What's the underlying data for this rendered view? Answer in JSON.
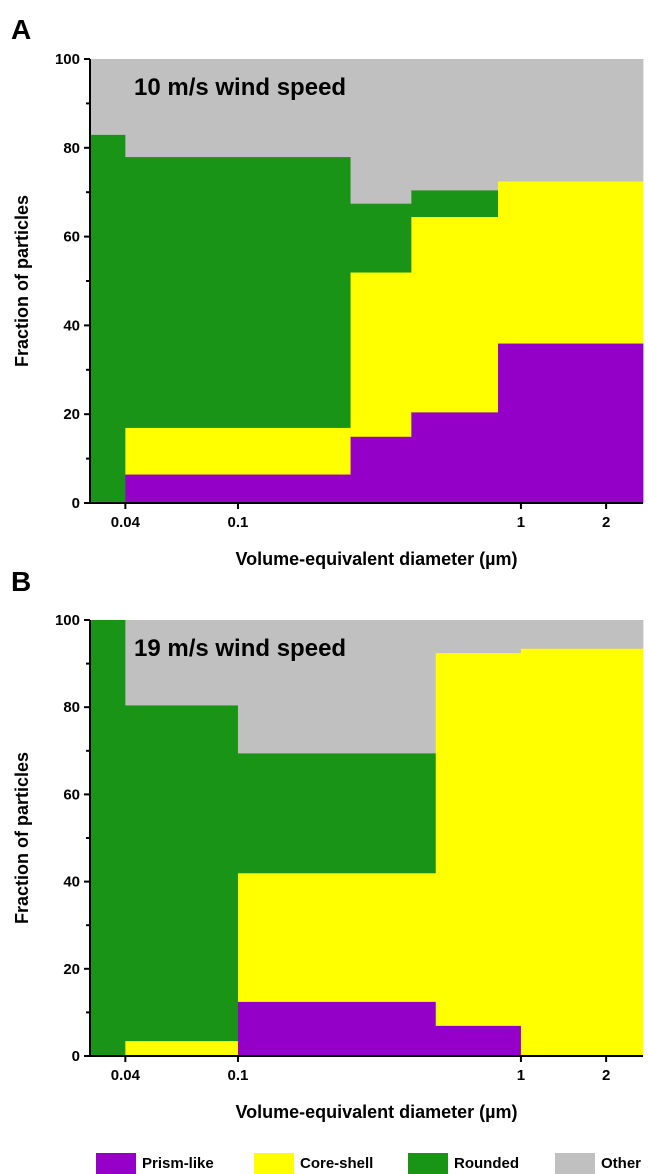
{
  "panels": {
    "A": {
      "letter": "A"
    },
    "B": {
      "letter": "B"
    }
  },
  "legend": [
    {
      "label": "Prism-like",
      "color": "#9400c8"
    },
    {
      "label": "Core-shell",
      "color": "#ffff00"
    },
    {
      "label": "Rounded",
      "color": "#1a9416"
    },
    {
      "label": "Other",
      "color": "#c0c0c0"
    }
  ],
  "chart_data": [
    {
      "type": "area",
      "subtype": "stacked-step",
      "title": "10 m/s wind speed",
      "xlabel": "Volume-equivalent diameter (µm)",
      "ylabel": "Fraction of particles",
      "xscale": "log",
      "xlim": [
        0.03,
        2.7
      ],
      "ylim": [
        0,
        100
      ],
      "xticks": [
        0.04,
        0.1,
        1,
        2
      ],
      "xtick_labels": [
        "0.04",
        "0.1",
        "1",
        "2"
      ],
      "yticks": [
        0,
        20,
        40,
        60,
        80,
        100
      ],
      "bin_edges": [
        0.03,
        0.04,
        0.25,
        0.41,
        0.83,
        2.7
      ],
      "stack_order": [
        "Prism-like",
        "Core-shell",
        "Rounded",
        "Other"
      ],
      "series": [
        {
          "name": "Prism-like",
          "values": [
            0,
            6.5,
            15,
            20.5,
            36
          ]
        },
        {
          "name": "Core-shell",
          "values": [
            0,
            10.5,
            37,
            44,
            36.5
          ]
        },
        {
          "name": "Rounded",
          "values": [
            83,
            61,
            15.5,
            6,
            0
          ]
        },
        {
          "name": "Other",
          "values": [
            17,
            22,
            32.5,
            29.5,
            27.5
          ]
        }
      ]
    },
    {
      "type": "area",
      "subtype": "stacked-step",
      "title": "19 m/s wind speed",
      "xlabel": "Volume-equivalent diameter (µm)",
      "ylabel": "Fraction of particles",
      "xscale": "log",
      "xlim": [
        0.03,
        2.7
      ],
      "ylim": [
        0,
        100
      ],
      "xticks": [
        0.04,
        0.1,
        1,
        2
      ],
      "xtick_labels": [
        "0.04",
        "0.1",
        "1",
        "2"
      ],
      "yticks": [
        0,
        20,
        40,
        60,
        80,
        100
      ],
      "bin_edges": [
        0.03,
        0.04,
        0.1,
        0.5,
        1,
        2.7
      ],
      "stack_order": [
        "Prism-like",
        "Core-shell",
        "Rounded",
        "Other"
      ],
      "series": [
        {
          "name": "Prism-like",
          "values": [
            0,
            0,
            12.5,
            7,
            0
          ]
        },
        {
          "name": "Core-shell",
          "values": [
            0,
            3.5,
            29.5,
            85.5,
            93.5
          ]
        },
        {
          "name": "Rounded",
          "values": [
            100,
            77,
            27.5,
            0,
            0
          ]
        },
        {
          "name": "Other",
          "values": [
            0,
            19.5,
            30.5,
            7.5,
            6.5
          ]
        }
      ]
    }
  ]
}
